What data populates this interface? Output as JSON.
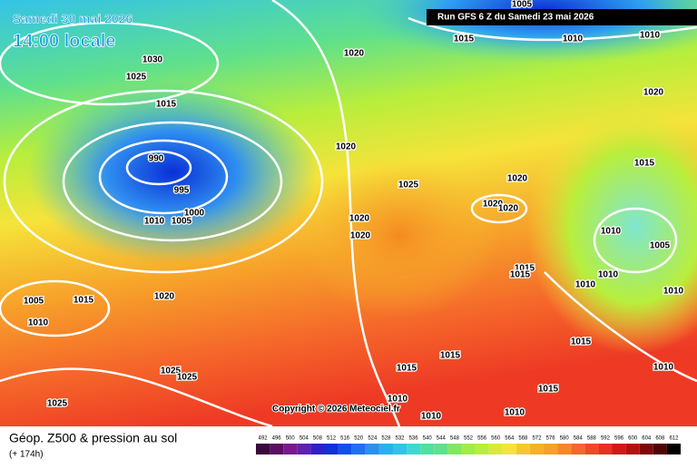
{
  "header": {
    "date": "Samedi 30 mai 2026",
    "time": "14:00 locale",
    "run": "Run GFS 6 Z du Samedi 23 mai 2026"
  },
  "isobar_labels": [
    "1005",
    "1030",
    "1025",
    "1015",
    "990",
    "995",
    "1000",
    "1010",
    "1005",
    "1020",
    "1015",
    "1010",
    "1010",
    "1020",
    "1020",
    "1015",
    "1025",
    "1020",
    "1020",
    "1020",
    "1020",
    "1020",
    "1010",
    "1005",
    "1015",
    "1015",
    "1010",
    "1010",
    "1010",
    "1005",
    "1015",
    "1020",
    "1010",
    "1015",
    "1025",
    "1025",
    "1015",
    "1015",
    "1010",
    "1015",
    "1010",
    "1010",
    "1010",
    "1025"
  ],
  "copyright": "Copyright © 2026 Meteociel.fr",
  "footer": {
    "title": "Géop. Z500 & pression au sol",
    "subtitle": "(+ 174h)"
  },
  "legend": {
    "labels": [
      492,
      496,
      500,
      504,
      508,
      512,
      516,
      520,
      524,
      528,
      532,
      536,
      540,
      544,
      548,
      552,
      556,
      560,
      564,
      568,
      572,
      576,
      580,
      584,
      588,
      592,
      596,
      600,
      604,
      608,
      612
    ]
  }
}
